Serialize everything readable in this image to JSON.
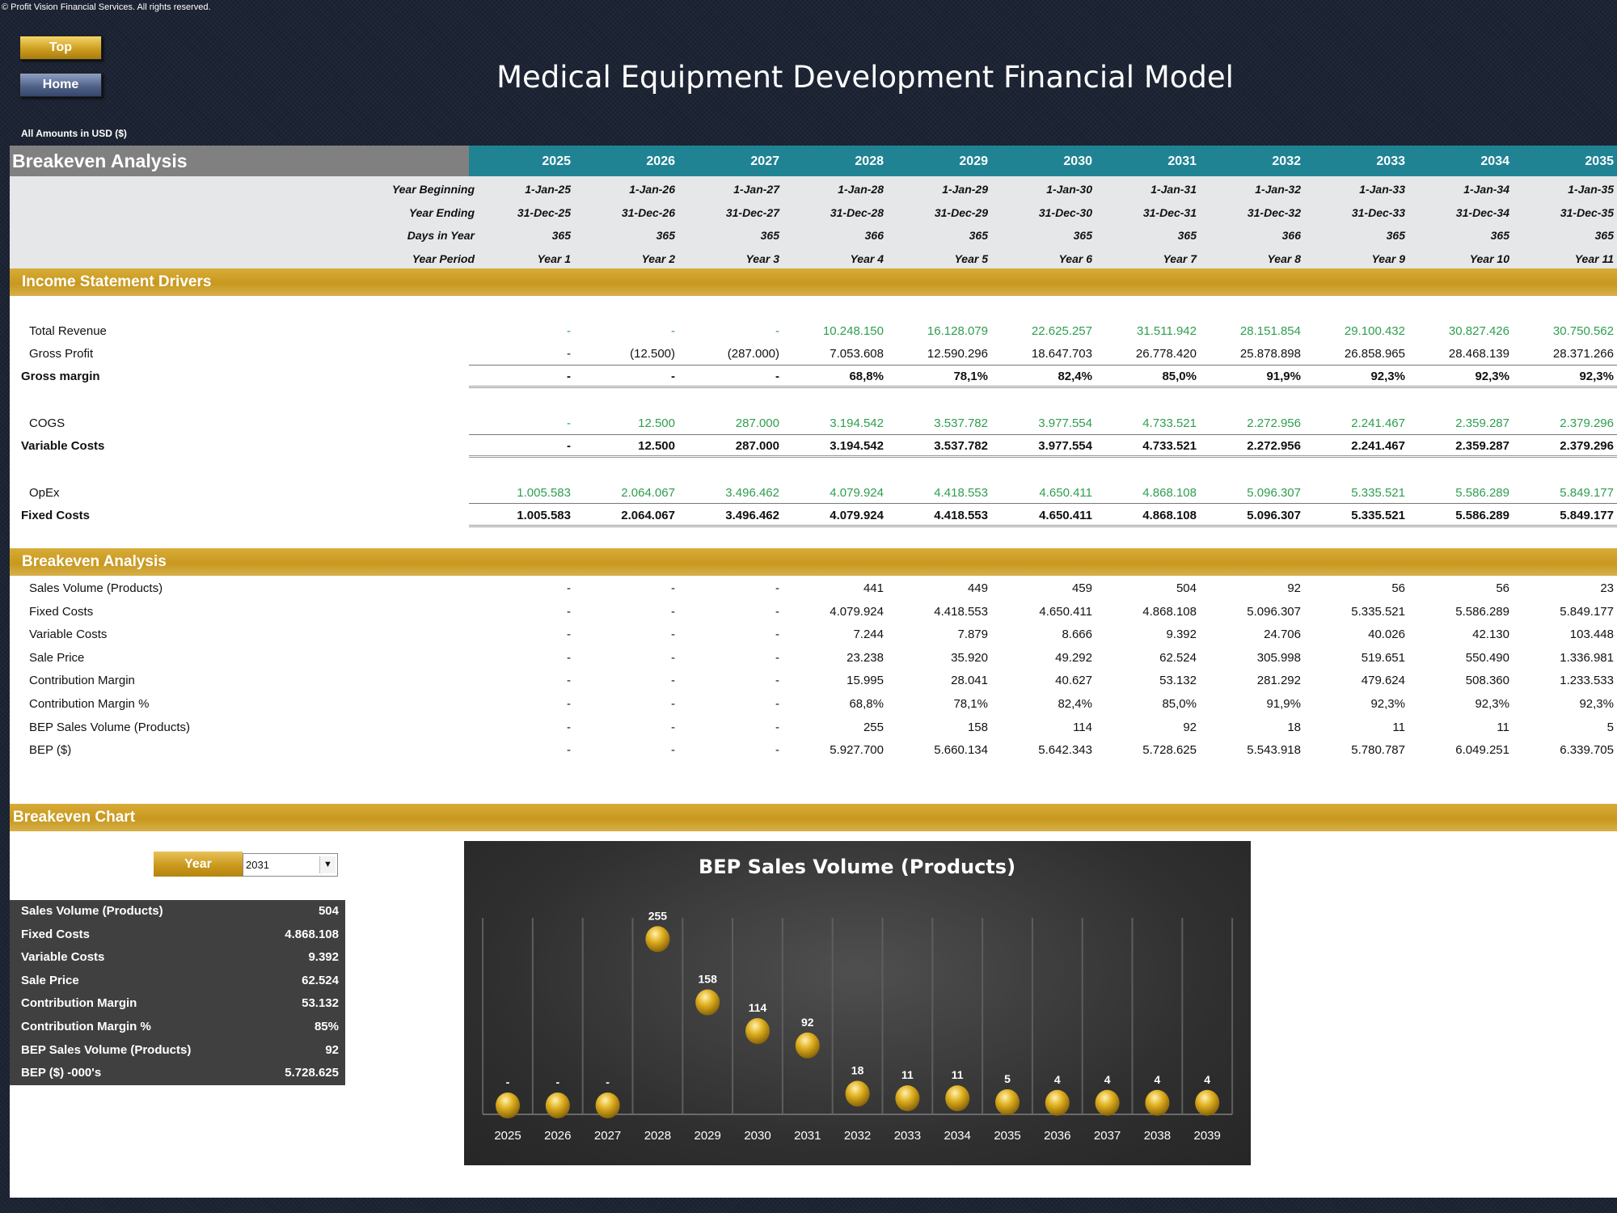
{
  "copyright": "© Profit Vision Financial Services. All rights reserved.",
  "buttons": {
    "top": "Top",
    "home": "Home"
  },
  "title": "Medical Equipment Development Financial Model",
  "amounts_note": "All Amounts in  USD ($)",
  "sheet_title": "Breakeven Analysis",
  "years": [
    "2025",
    "2026",
    "2027",
    "2028",
    "2029",
    "2030",
    "2031",
    "2032",
    "2033",
    "2034",
    "2035"
  ],
  "meta": {
    "labels": [
      "Year Beginning",
      "Year Ending",
      "Days in Year",
      "Year Period"
    ],
    "year_beginning": [
      "1-Jan-25",
      "1-Jan-26",
      "1-Jan-27",
      "1-Jan-28",
      "1-Jan-29",
      "1-Jan-30",
      "1-Jan-31",
      "1-Jan-32",
      "1-Jan-33",
      "1-Jan-34",
      "1-Jan-35"
    ],
    "year_ending": [
      "31-Dec-25",
      "31-Dec-26",
      "31-Dec-27",
      "31-Dec-28",
      "31-Dec-29",
      "31-Dec-30",
      "31-Dec-31",
      "31-Dec-32",
      "31-Dec-33",
      "31-Dec-34",
      "31-Dec-35"
    ],
    "days_in_year": [
      "365",
      "365",
      "365",
      "366",
      "365",
      "365",
      "365",
      "366",
      "365",
      "365",
      "365"
    ],
    "year_period": [
      "Year 1",
      "Year 2",
      "Year 3",
      "Year 4",
      "Year 5",
      "Year 6",
      "Year 7",
      "Year 8",
      "Year 9",
      "Year 10",
      "Year 11"
    ]
  },
  "income_section_title": "Income Statement Drivers",
  "income_rows": [
    {
      "label": "Total Revenue",
      "values": [
        "-",
        "-",
        "-",
        "10.248.150",
        "16.128.079",
        "22.625.257",
        "31.511.942",
        "28.151.854",
        "29.100.432",
        "30.827.426",
        "30.750.562"
      ]
    },
    {
      "label": "Gross Profit",
      "values": [
        "-",
        "(12.500)",
        "(287.000)",
        "7.053.608",
        "12.590.296",
        "18.647.703",
        "26.778.420",
        "25.878.898",
        "26.858.965",
        "28.468.139",
        "28.371.266"
      ]
    },
    {
      "label": "Gross margin",
      "values": [
        "-",
        "-",
        "-",
        "68,8%",
        "78,1%",
        "82,4%",
        "85,0%",
        "91,9%",
        "92,3%",
        "92,3%",
        "92,3%"
      ]
    },
    {
      "label": "COGS",
      "values": [
        "-",
        "12.500",
        "287.000",
        "3.194.542",
        "3.537.782",
        "3.977.554",
        "4.733.521",
        "2.272.956",
        "2.241.467",
        "2.359.287",
        "2.379.296"
      ]
    },
    {
      "label": "Variable Costs",
      "values": [
        "-",
        "12.500",
        "287.000",
        "3.194.542",
        "3.537.782",
        "3.977.554",
        "4.733.521",
        "2.272.956",
        "2.241.467",
        "2.359.287",
        "2.379.296"
      ]
    },
    {
      "label": "OpEx",
      "values": [
        "1.005.583",
        "2.064.067",
        "3.496.462",
        "4.079.924",
        "4.418.553",
        "4.650.411",
        "4.868.108",
        "5.096.307",
        "5.335.521",
        "5.586.289",
        "5.849.177"
      ]
    },
    {
      "label": "Fixed Costs",
      "values": [
        "1.005.583",
        "2.064.067",
        "3.496.462",
        "4.079.924",
        "4.418.553",
        "4.650.411",
        "4.868.108",
        "5.096.307",
        "5.335.521",
        "5.586.289",
        "5.849.177"
      ]
    }
  ],
  "breakeven_section_title": "Breakeven Analysis",
  "breakeven_rows": [
    {
      "label": "Sales Volume (Products)",
      "values": [
        "-",
        "-",
        "-",
        "441",
        "449",
        "459",
        "504",
        "92",
        "56",
        "56",
        "23"
      ]
    },
    {
      "label": "Fixed Costs",
      "values": [
        "-",
        "-",
        "-",
        "4.079.924",
        "4.418.553",
        "4.650.411",
        "4.868.108",
        "5.096.307",
        "5.335.521",
        "5.586.289",
        "5.849.177"
      ]
    },
    {
      "label": "Variable Costs",
      "values": [
        "-",
        "-",
        "-",
        "7.244",
        "7.879",
        "8.666",
        "9.392",
        "24.706",
        "40.026",
        "42.130",
        "103.448"
      ]
    },
    {
      "label": "Sale Price",
      "values": [
        "-",
        "-",
        "-",
        "23.238",
        "35.920",
        "49.292",
        "62.524",
        "305.998",
        "519.651",
        "550.490",
        "1.336.981"
      ]
    },
    {
      "label": "Contribution Margin",
      "values": [
        "-",
        "-",
        "-",
        "15.995",
        "28.041",
        "40.627",
        "53.132",
        "281.292",
        "479.624",
        "508.360",
        "1.233.533"
      ]
    },
    {
      "label": "Contribution Margin %",
      "values": [
        "-",
        "-",
        "-",
        "68,8%",
        "78,1%",
        "82,4%",
        "85,0%",
        "91,9%",
        "92,3%",
        "92,3%",
        "92,3%"
      ]
    },
    {
      "label": "BEP Sales Volume (Products)",
      "values": [
        "-",
        "-",
        "-",
        "255",
        "158",
        "114",
        "92",
        "18",
        "11",
        "11",
        "5"
      ]
    },
    {
      "label": "BEP ($)",
      "values": [
        "-",
        "-",
        "-",
        "5.927.700",
        "5.660.134",
        "5.642.343",
        "5.728.625",
        "5.543.918",
        "5.780.787",
        "6.049.251",
        "6.339.705"
      ]
    }
  ],
  "chart_section_title": "Breakeven Chart",
  "year_selector": {
    "label": "Year",
    "value": "2031"
  },
  "summary": [
    {
      "label": "Sales Volume (Products)",
      "value": "504"
    },
    {
      "label": "Fixed Costs",
      "value": "4.868.108"
    },
    {
      "label": "Variable Costs",
      "value": "9.392"
    },
    {
      "label": "Sale Price",
      "value": "62.524"
    },
    {
      "label": "Contribution Margin",
      "value": "53.132"
    },
    {
      "label": "Contribution Margin %",
      "value": "85%"
    },
    {
      "label": "BEP Sales Volume (Products)",
      "value": "92"
    },
    {
      "label": "BEP ($) -000's",
      "value": "5.728.625"
    }
  ],
  "chart_data": {
    "type": "scatter",
    "title": "BEP Sales Volume (Products)",
    "categories": [
      "2025",
      "2026",
      "2027",
      "2028",
      "2029",
      "2030",
      "2031",
      "2032",
      "2033",
      "2034",
      "2035",
      "2036",
      "2037",
      "2038",
      "2039"
    ],
    "values": [
      0,
      0,
      0,
      255,
      158,
      114,
      92,
      18,
      11,
      11,
      5,
      4,
      4,
      4,
      4
    ],
    "labels": [
      "-",
      "-",
      "-",
      "255",
      "158",
      "114",
      "92",
      "18",
      "11",
      "11",
      "5",
      "4",
      "4",
      "4",
      "4"
    ],
    "ylim": [
      0,
      300
    ],
    "marker_color": "#e0b020",
    "grid": true
  }
}
